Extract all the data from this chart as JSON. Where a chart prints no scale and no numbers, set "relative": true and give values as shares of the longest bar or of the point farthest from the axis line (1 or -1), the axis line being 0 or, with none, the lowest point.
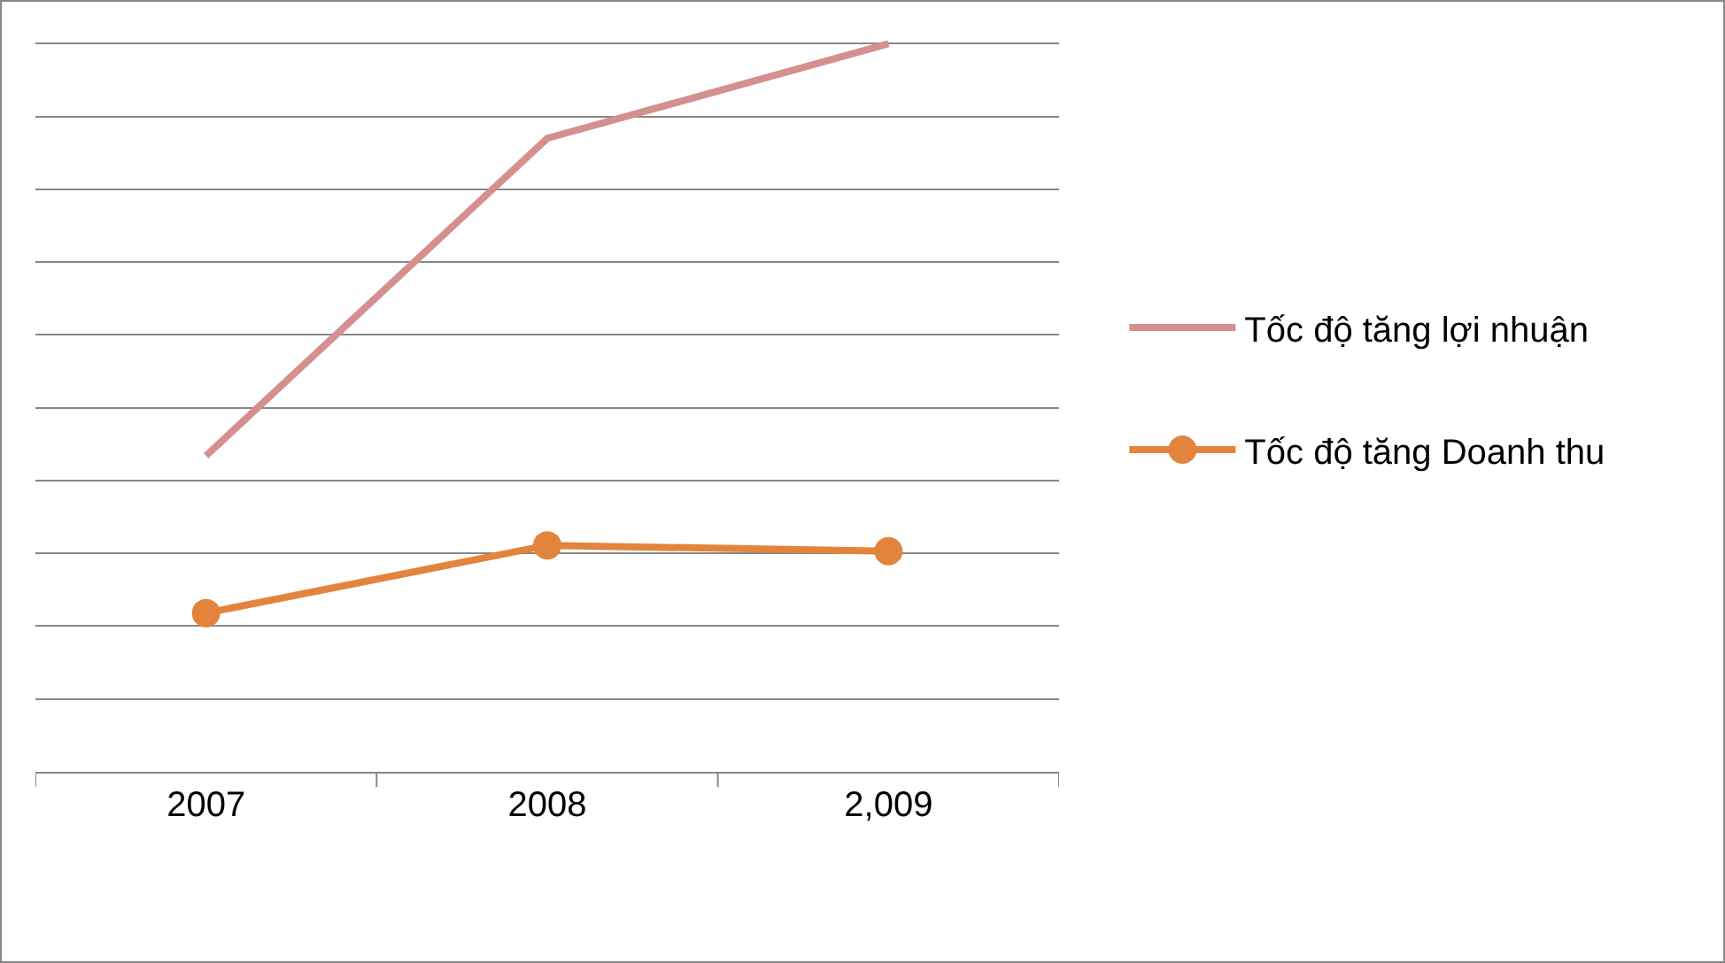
{
  "chart_data": {
    "type": "line",
    "relative": true,
    "grid": "y",
    "legend": "right",
    "categories": [
      "2007",
      "2008",
      "2,009"
    ],
    "series": [
      {
        "name": "Tốc độ tăng lợi nhuận",
        "color": "#d4908f",
        "marker": "none",
        "values": [
          0.434,
          0.87,
          1
        ]
      },
      {
        "name": "Tốc độ tăng Doanh thu",
        "color": "#e3843c",
        "marker": "circle",
        "values": [
          0.218,
          0.311,
          0.303
        ]
      }
    ]
  }
}
